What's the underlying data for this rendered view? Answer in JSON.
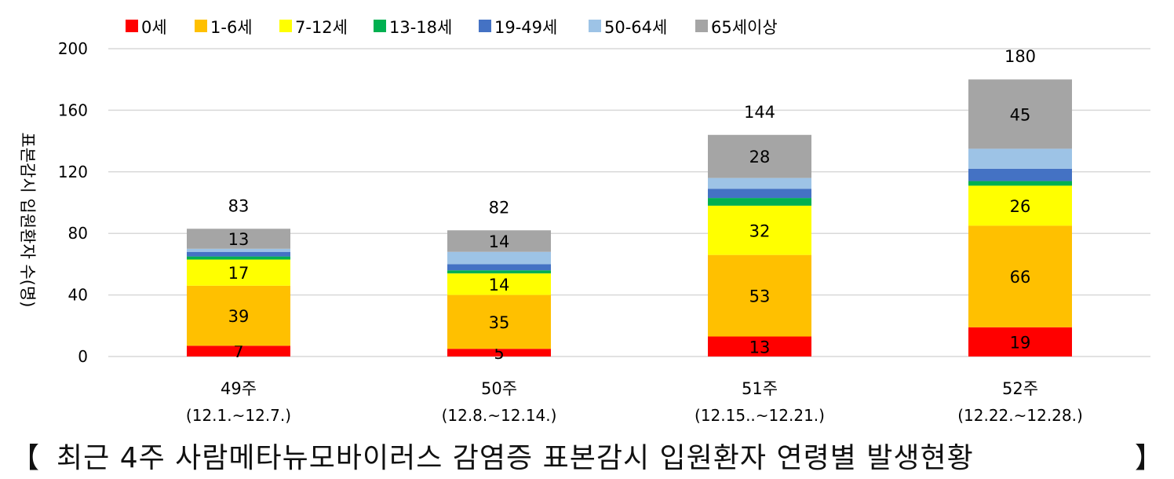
{
  "chart_data": {
    "type": "bar",
    "stacked": true,
    "ylabel": "표본감시 입원환자 수(명)",
    "ylim": [
      0,
      200
    ],
    "yticks": [
      0,
      40,
      80,
      120,
      160,
      200
    ],
    "grid": true,
    "legend_position": "top",
    "categories": [
      {
        "week": "49주",
        "range": "(12.1.~12.7.)"
      },
      {
        "week": "50주",
        "range": "(12.8.~12.14.)"
      },
      {
        "week": "51주",
        "range": "(12.15..~12.21.)"
      },
      {
        "week": "52주",
        "range": "(12.22.~12.28.)"
      }
    ],
    "totals": [
      83,
      82,
      144,
      180
    ],
    "series": [
      {
        "name": "0세",
        "color": "#FF0000",
        "values": [
          7,
          5,
          13,
          19
        ],
        "show_labels": true
      },
      {
        "name": "1-6세",
        "color": "#FFC000",
        "values": [
          39,
          35,
          53,
          66
        ],
        "show_labels": true
      },
      {
        "name": "7-12세",
        "color": "#FFFF00",
        "values": [
          17,
          14,
          32,
          26
        ],
        "show_labels": true
      },
      {
        "name": "13-18세",
        "color": "#00B050",
        "values": [
          2,
          2,
          5,
          3
        ],
        "show_labels": false
      },
      {
        "name": "19-49세",
        "color": "#4472C4",
        "values": [
          3,
          4,
          6,
          8
        ],
        "show_labels": false
      },
      {
        "name": "50-64세",
        "color": "#9DC3E6",
        "values": [
          2,
          8,
          7,
          13
        ],
        "show_labels": false
      },
      {
        "name": "65세이상",
        "color": "#A5A5A5",
        "values": [
          13,
          14,
          28,
          45
        ],
        "show_labels": true
      }
    ]
  },
  "caption": {
    "open_bracket": "【",
    "text": "최근 4주 사람메타뉴모바이러스 감염증 표본감시 입원환자 연령별 발생현황",
    "close_bracket": "】"
  }
}
